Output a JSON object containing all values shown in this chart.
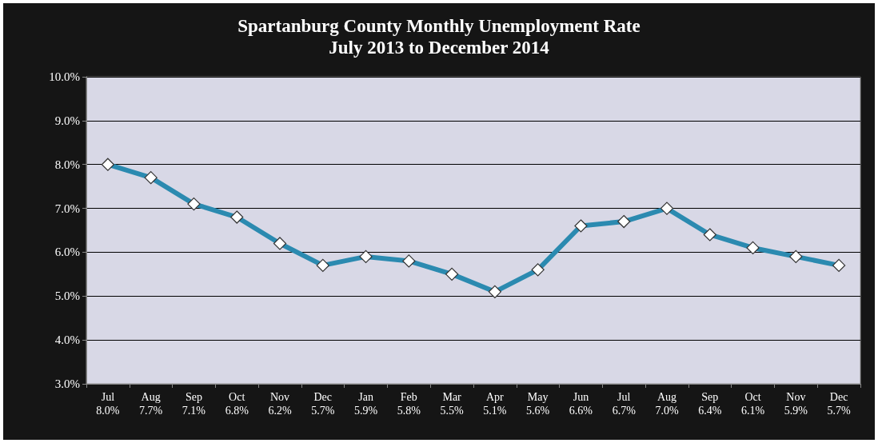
{
  "chart_data": {
    "type": "line",
    "title": "Spartanburg County Monthly Unemployment Rate",
    "subtitle": "July 2013 to December 2014",
    "categories": [
      "Jul",
      "Aug",
      "Sep",
      "Oct",
      "Nov",
      "Dec",
      "Jan",
      "Feb",
      "Mar",
      "Apr",
      "May",
      "Jun",
      "Jul",
      "Aug",
      "Sep",
      "Oct",
      "Nov",
      "Dec"
    ],
    "series": [
      {
        "color": "#2b8ab0",
        "values": [
          8.0,
          7.7,
          7.1,
          6.8,
          6.2,
          5.7,
          5.9,
          5.8,
          5.5,
          5.1,
          5.6,
          6.6,
          6.7,
          7.0,
          6.4,
          6.1,
          5.9,
          5.7
        ],
        "value_labels": [
          "8.0%",
          "7.7%",
          "7.1%",
          "6.8%",
          "6.2%",
          "5.7%",
          "5.9%",
          "5.8%",
          "5.5%",
          "5.1%",
          "5.6%",
          "6.6%",
          "6.7%",
          "7.0%",
          "6.4%",
          "6.1%",
          "5.9%",
          "5.7%"
        ]
      }
    ],
    "ylim": [
      3,
      10
    ],
    "yticks": [
      {
        "value": 3,
        "label": "3.0%"
      },
      {
        "value": 4,
        "label": "4.0%"
      },
      {
        "value": 5,
        "label": "5.0%"
      },
      {
        "value": 6,
        "label": "6.0%"
      },
      {
        "value": 7,
        "label": "7.0%"
      },
      {
        "value": 8,
        "label": "8.0%"
      },
      {
        "value": 9,
        "label": "9.0%"
      },
      {
        "value": 10,
        "label": "10.0%"
      }
    ],
    "grid": "y",
    "marker": "diamond"
  }
}
